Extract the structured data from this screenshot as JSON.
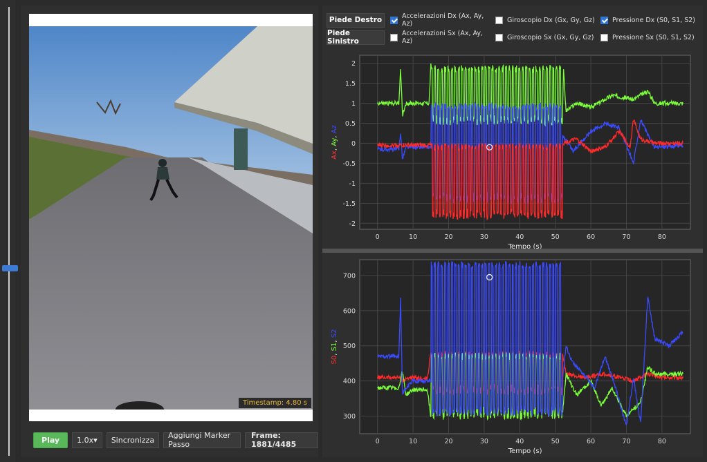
{
  "video": {
    "timestamp": "Timestamp: 4.80 s"
  },
  "controls": {
    "play_label": "Play",
    "speed_value": "1.0x",
    "speed_arrow": "▾",
    "sync_label": "Sincronizza",
    "marker_label": "Aggiungi Marker Passo",
    "frame_label": "Frame: 1881/4485"
  },
  "options": {
    "right_foot": "Piede Destro",
    "left_foot": "Piede Sinistro",
    "right_acc": {
      "label": "Accelerazioni Dx (Ax, Ay, Az)",
      "checked": true
    },
    "right_gyro": {
      "label": "Giroscopio Dx (Gx, Gy, Gz)",
      "checked": false
    },
    "right_press": {
      "label": "Pressione Dx (S0, S1, S2)",
      "checked": true
    },
    "left_acc": {
      "label": "Accelerazioni Sx (Ax, Ay, Az)",
      "checked": false
    },
    "left_gyro": {
      "label": "Giroscopio Sx (Gx, Gy, Gz)",
      "checked": false
    },
    "left_press": {
      "label": "Pressione Sx (S0, S1, S2)",
      "checked": false
    }
  },
  "chart_data": [
    {
      "type": "line",
      "xlabel": "Tempo (s)",
      "ylabel_parts": [
        {
          "text": "Ax",
          "color": "#ff3030"
        },
        {
          "text": ", ",
          "color": "#d8d8d8"
        },
        {
          "text": "Ay",
          "color": "#7cff3a"
        },
        {
          "text": ", ",
          "color": "#d8d8d8"
        },
        {
          "text": "Az",
          "color": "#3a4bff"
        }
      ],
      "xlim": [
        -5,
        88
      ],
      "ylim": [
        -2.15,
        2.2
      ],
      "xticks": [
        0,
        10,
        20,
        30,
        40,
        50,
        60,
        70,
        80
      ],
      "yticks": [
        2,
        1.5,
        1,
        0.5,
        0,
        -0.5,
        -1,
        -1.5,
        -2
      ],
      "grid": true,
      "cursor": {
        "x": 31.5,
        "y": -0.1
      },
      "series": [
        {
          "color": "#7cff3a",
          "baseline": 1,
          "points": [
            [
              0,
              1
            ],
            [
              6,
              1
            ],
            [
              6.5,
              1.9
            ],
            [
              7,
              0.7
            ],
            [
              8,
              1
            ],
            [
              14.5,
              1
            ],
            [
              15,
              1.95
            ],
            [
              16,
              0.6
            ],
            [
              52,
              0.6
            ],
            [
              52.3,
              1.9
            ],
            [
              53,
              0.8
            ],
            [
              56,
              1
            ],
            [
              60,
              0.9
            ],
            [
              66,
              1.2
            ],
            [
              72,
              1.1
            ],
            [
              76,
              1.3
            ],
            [
              78,
              1
            ],
            [
              86,
              1
            ]
          ],
          "oscillation": {
            "from": 15,
            "to": 52,
            "hi": 1.95,
            "lo": 0.45
          }
        },
        {
          "color": "#3a4bff",
          "baseline": -0.15,
          "points": [
            [
              0,
              -0.15
            ],
            [
              6,
              -0.15
            ],
            [
              6.5,
              0.3
            ],
            [
              7,
              -0.4
            ],
            [
              8,
              -0.1
            ],
            [
              14.5,
              -0.1
            ],
            [
              52,
              0.2
            ],
            [
              55,
              -0.2
            ],
            [
              60,
              0.3
            ],
            [
              64,
              0.5
            ],
            [
              68,
              0.4
            ],
            [
              72,
              -0.5
            ],
            [
              74,
              0.6
            ],
            [
              76,
              0.2
            ],
            [
              78,
              -0.1
            ],
            [
              86,
              -0.05
            ]
          ],
          "oscillation": {
            "from": 15,
            "to": 52,
            "hi": 1.0,
            "lo": -1.5
          }
        },
        {
          "color": "#ff2a2a",
          "baseline": -0.05,
          "points": [
            [
              0,
              -0.05
            ],
            [
              14.5,
              -0.05
            ],
            [
              52,
              0
            ],
            [
              56,
              0.1
            ],
            [
              60,
              -0.2
            ],
            [
              64,
              -0.1
            ],
            [
              68,
              0.3
            ],
            [
              71,
              -0.1
            ],
            [
              72,
              0.6
            ],
            [
              74,
              0.1
            ],
            [
              78,
              0
            ],
            [
              86,
              0
            ]
          ],
          "oscillation": {
            "from": 15,
            "to": 52,
            "hi": 0.0,
            "lo": -1.9
          }
        }
      ]
    },
    {
      "type": "line",
      "xlabel": "Tempo (s)",
      "ylabel_parts": [
        {
          "text": "S0",
          "color": "#ff3030"
        },
        {
          "text": ", ",
          "color": "#d8d8d8"
        },
        {
          "text": "S1",
          "color": "#7cff3a"
        },
        {
          "text": ", ",
          "color": "#d8d8d8"
        },
        {
          "text": "S2",
          "color": "#3a4bff"
        }
      ],
      "xlim": [
        -5,
        88
      ],
      "ylim": [
        250,
        745
      ],
      "xticks": [
        0,
        10,
        20,
        30,
        40,
        50,
        60,
        70,
        80
      ],
      "yticks": [
        700,
        600,
        500,
        400,
        300
      ],
      "grid": true,
      "cursor": {
        "x": 31.5,
        "y": 695
      },
      "series": [
        {
          "color": "#ff2a2a",
          "baseline": 410,
          "points": [
            [
              0,
              410
            ],
            [
              6,
              410
            ],
            [
              7,
              400
            ],
            [
              9,
              410
            ],
            [
              14,
              405
            ],
            [
              15,
              480
            ],
            [
              52,
              480
            ],
            [
              53,
              420
            ],
            [
              58,
              410
            ],
            [
              64,
              420
            ],
            [
              68,
              410
            ],
            [
              72,
              400
            ],
            [
              76,
              420
            ],
            [
              80,
              410
            ],
            [
              86,
              410
            ]
          ],
          "oscillation": {
            "from": 15,
            "to": 52,
            "hi": 485,
            "lo": 360
          }
        },
        {
          "color": "#7cff3a",
          "baseline": 380,
          "points": [
            [
              0,
              380
            ],
            [
              6,
              380
            ],
            [
              7,
              430
            ],
            [
              8,
              360
            ],
            [
              10,
              375
            ],
            [
              14,
              375
            ],
            [
              15,
              300
            ],
            [
              52,
              300
            ],
            [
              53,
              420
            ],
            [
              56,
              360
            ],
            [
              60,
              400
            ],
            [
              63,
              330
            ],
            [
              66,
              380
            ],
            [
              70,
              300
            ],
            [
              74,
              340
            ],
            [
              76,
              440
            ],
            [
              78,
              420
            ],
            [
              86,
              420
            ]
          ],
          "oscillation": {
            "from": 15,
            "to": 52,
            "hi": 480,
            "lo": 290
          }
        },
        {
          "color": "#3a4bff",
          "baseline": 470,
          "points": [
            [
              0,
              470
            ],
            [
              6,
              470
            ],
            [
              6.5,
              640
            ],
            [
              7,
              360
            ],
            [
              8,
              380
            ],
            [
              10,
              400
            ],
            [
              14,
              400
            ],
            [
              52,
              400
            ],
            [
              53,
              500
            ],
            [
              55,
              450
            ],
            [
              58,
              420
            ],
            [
              61,
              380
            ],
            [
              64,
              470
            ],
            [
              67,
              380
            ],
            [
              70,
              270
            ],
            [
              72,
              410
            ],
            [
              74,
              280
            ],
            [
              76,
              640
            ],
            [
              78,
              520
            ],
            [
              82,
              500
            ],
            [
              86,
              540
            ]
          ],
          "oscillation": {
            "from": 15,
            "to": 52,
            "hi": 740,
            "lo": 300
          }
        }
      ]
    }
  ]
}
